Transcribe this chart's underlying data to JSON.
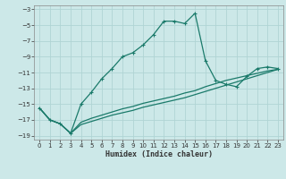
{
  "xlabel": "Humidex (Indice chaleur)",
  "bg_color": "#cce8e8",
  "grid_color": "#b0d4d4",
  "line_color": "#1a7a6a",
  "xlim": [
    -0.5,
    23.5
  ],
  "ylim": [
    -19.5,
    -2.5
  ],
  "yticks": [
    -19,
    -17,
    -15,
    -13,
    -11,
    -9,
    -7,
    -5,
    -3
  ],
  "xticks": [
    0,
    1,
    2,
    3,
    4,
    5,
    6,
    7,
    8,
    9,
    10,
    11,
    12,
    13,
    14,
    15,
    16,
    17,
    18,
    19,
    20,
    21,
    22,
    23
  ],
  "series1_x": [
    0,
    1,
    2,
    3,
    4,
    5,
    6,
    7,
    8,
    9,
    10,
    11,
    12,
    13,
    14,
    15,
    16,
    17,
    18,
    19,
    20,
    21,
    22,
    23
  ],
  "series1_y": [
    -15.5,
    -17.0,
    -17.5,
    -18.7,
    -15.0,
    -13.5,
    -11.8,
    -10.5,
    -9.0,
    -8.5,
    -7.5,
    -6.2,
    -4.5,
    -4.5,
    -4.8,
    -3.5,
    -9.5,
    -12.0,
    -12.5,
    -12.8,
    -11.5,
    -10.5,
    -10.3,
    -10.5
  ],
  "series2_x": [
    0,
    1,
    2,
    3,
    4,
    5,
    6,
    7,
    8,
    9,
    10,
    11,
    12,
    13,
    14,
    15,
    16,
    17,
    18,
    19,
    20,
    21,
    22,
    23
  ],
  "series2_y": [
    -15.5,
    -17.0,
    -17.5,
    -18.7,
    -17.3,
    -16.8,
    -16.4,
    -16.0,
    -15.6,
    -15.3,
    -14.9,
    -14.6,
    -14.3,
    -14.0,
    -13.6,
    -13.3,
    -12.8,
    -12.4,
    -12.0,
    -11.7,
    -11.4,
    -11.1,
    -10.8,
    -10.6
  ],
  "series3_x": [
    0,
    1,
    2,
    3,
    4,
    5,
    6,
    7,
    8,
    9,
    10,
    11,
    12,
    13,
    14,
    15,
    16,
    17,
    18,
    19,
    20,
    21,
    22,
    23
  ],
  "series3_y": [
    -15.5,
    -17.0,
    -17.5,
    -18.7,
    -17.6,
    -17.2,
    -16.8,
    -16.4,
    -16.1,
    -15.8,
    -15.4,
    -15.1,
    -14.8,
    -14.5,
    -14.2,
    -13.8,
    -13.4,
    -13.0,
    -12.6,
    -12.2,
    -11.8,
    -11.4,
    -11.0,
    -10.6
  ]
}
